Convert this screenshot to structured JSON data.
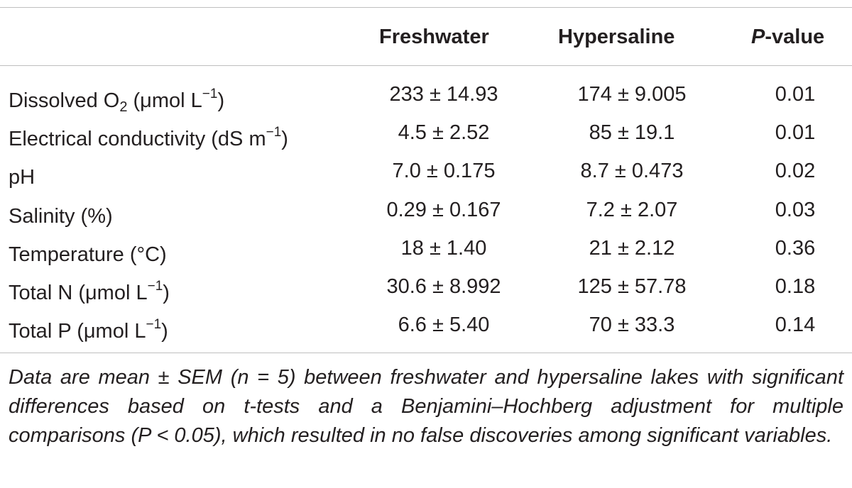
{
  "table": {
    "headers": {
      "parameter": "",
      "freshwater": "Freshwater",
      "hypersaline": "Hypersaline",
      "pvalue_italic": "P",
      "pvalue_rest": "-value"
    },
    "rows": [
      {
        "param": {
          "pre": "Dissolved O",
          "sub": "2",
          "mid": " (μmol L",
          "sup": "−1",
          "post": ")"
        },
        "freshwater": "233 ± 14.93",
        "hypersaline": "174 ± 9.005",
        "pvalue": "0.01"
      },
      {
        "param": {
          "pre": "Electrical conductivity (dS m",
          "sub": "",
          "mid": "",
          "sup": "−1",
          "post": ")"
        },
        "freshwater": "4.5 ± 2.52",
        "hypersaline": "85 ± 19.1",
        "pvalue": "0.01"
      },
      {
        "param": {
          "pre": "pH",
          "sub": "",
          "mid": "",
          "sup": "",
          "post": ""
        },
        "freshwater": "7.0 ± 0.175",
        "hypersaline": "8.7 ± 0.473",
        "pvalue": "0.02"
      },
      {
        "param": {
          "pre": "Salinity (%)",
          "sub": "",
          "mid": "",
          "sup": "",
          "post": ""
        },
        "freshwater": "0.29 ± 0.167",
        "hypersaline": "7.2 ± 2.07",
        "pvalue": "0.03"
      },
      {
        "param": {
          "pre": "Temperature (°C)",
          "sub": "",
          "mid": "",
          "sup": "",
          "post": ""
        },
        "freshwater": "18 ± 1.40",
        "hypersaline": "21 ± 2.12",
        "pvalue": "0.36"
      },
      {
        "param": {
          "pre": "Total N (μmol L",
          "sub": "",
          "mid": "",
          "sup": "−1",
          "post": ")"
        },
        "freshwater": "30.6 ± 8.992",
        "hypersaline": "125 ± 57.78",
        "pvalue": "0.18"
      },
      {
        "param": {
          "pre": "Total P (μmol L",
          "sub": "",
          "mid": "",
          "sup": "−1",
          "post": ")"
        },
        "freshwater": "6.6 ± 5.40",
        "hypersaline": "70 ± 33.3",
        "pvalue": "0.14"
      }
    ],
    "footnote": "Data are mean ± SEM (n = 5) between freshwater and hypersaline lakes with significant differences based on t-tests and a Benjamini–Hochberg adjustment for multiple comparisons (P < 0.05), which resulted in no false discoveries among significant variables."
  }
}
